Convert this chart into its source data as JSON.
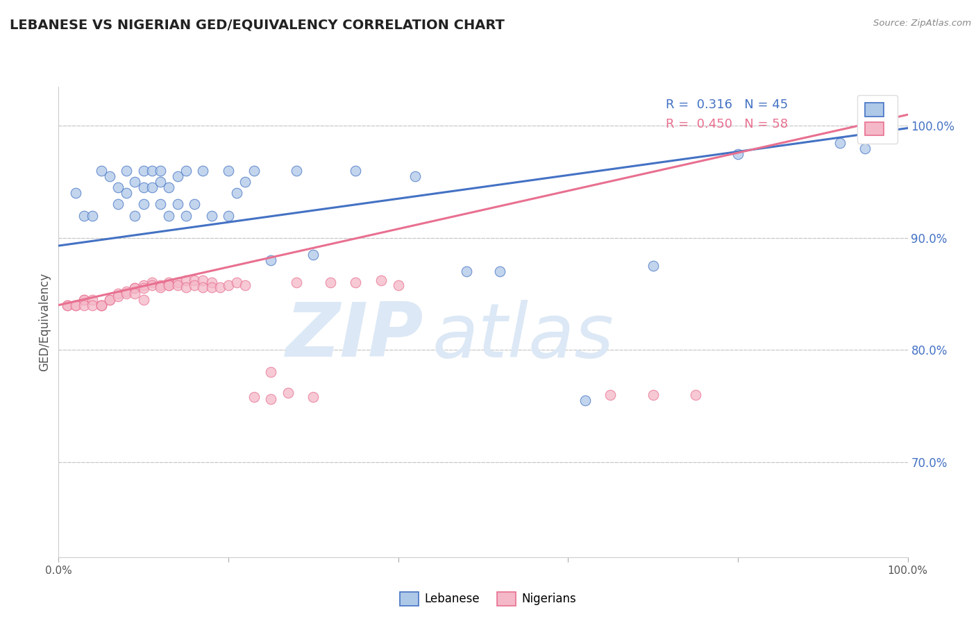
{
  "title": "LEBANESE VS NIGERIAN GED/EQUIVALENCY CORRELATION CHART",
  "source": "Source: ZipAtlas.com",
  "ylabel": "GED/Equivalency",
  "xlim": [
    0.0,
    1.0
  ],
  "ylim": [
    0.615,
    1.035
  ],
  "ytick_right": [
    0.7,
    0.8,
    0.9,
    1.0
  ],
  "ytick_right_labels": [
    "70.0%",
    "80.0%",
    "90.0%",
    "100.0%"
  ],
  "background_color": "#ffffff",
  "grid_color": "#c8c8c8",
  "title_color": "#222222",
  "axis_label_color": "#555555",
  "right_tick_color": "#4472c4",
  "watermark_color": "#dce8f5",
  "leb_color": "#4472c4",
  "nig_color": "#e87090",
  "leb_scatter_facecolor": "#aec8e8",
  "nig_scatter_facecolor": "#f4b8c8",
  "leb_R": 0.316,
  "leb_N": 45,
  "nig_R": 0.45,
  "nig_N": 58,
  "leb_line": {
    "x0": 0.0,
    "y0": 0.893,
    "x1": 1.0,
    "y1": 0.998
  },
  "nig_line": {
    "x0": 0.0,
    "y0": 0.84,
    "x1": 1.0,
    "y1": 1.01
  },
  "lebanese_scatter_x": [
    0.02,
    0.03,
    0.04,
    0.05,
    0.06,
    0.07,
    0.07,
    0.08,
    0.08,
    0.09,
    0.09,
    0.1,
    0.1,
    0.1,
    0.11,
    0.11,
    0.12,
    0.12,
    0.12,
    0.13,
    0.13,
    0.14,
    0.14,
    0.15,
    0.15,
    0.16,
    0.17,
    0.18,
    0.2,
    0.2,
    0.21,
    0.22,
    0.23,
    0.25,
    0.28,
    0.3,
    0.35,
    0.42,
    0.48,
    0.52,
    0.62,
    0.7,
    0.8,
    0.92,
    0.95
  ],
  "lebanese_scatter_y": [
    0.94,
    0.92,
    0.92,
    0.96,
    0.955,
    0.945,
    0.93,
    0.96,
    0.94,
    0.95,
    0.92,
    0.96,
    0.945,
    0.93,
    0.96,
    0.945,
    0.96,
    0.95,
    0.93,
    0.945,
    0.92,
    0.955,
    0.93,
    0.96,
    0.92,
    0.93,
    0.96,
    0.92,
    0.96,
    0.92,
    0.94,
    0.95,
    0.96,
    0.88,
    0.96,
    0.885,
    0.96,
    0.955,
    0.87,
    0.87,
    0.755,
    0.875,
    0.975,
    0.985,
    0.98
  ],
  "nigerian_scatter_x": [
    0.01,
    0.01,
    0.02,
    0.02,
    0.03,
    0.03,
    0.03,
    0.04,
    0.04,
    0.05,
    0.05,
    0.05,
    0.06,
    0.06,
    0.07,
    0.07,
    0.08,
    0.08,
    0.09,
    0.09,
    0.09,
    0.1,
    0.1,
    0.1,
    0.11,
    0.11,
    0.12,
    0.12,
    0.13,
    0.13,
    0.13,
    0.14,
    0.14,
    0.15,
    0.15,
    0.16,
    0.16,
    0.17,
    0.17,
    0.18,
    0.18,
    0.19,
    0.2,
    0.21,
    0.22,
    0.23,
    0.25,
    0.25,
    0.27,
    0.28,
    0.3,
    0.32,
    0.35,
    0.38,
    0.4,
    0.65,
    0.7,
    0.75
  ],
  "nigerian_scatter_y": [
    0.84,
    0.84,
    0.84,
    0.84,
    0.845,
    0.845,
    0.84,
    0.845,
    0.84,
    0.84,
    0.84,
    0.84,
    0.845,
    0.845,
    0.85,
    0.848,
    0.852,
    0.85,
    0.855,
    0.855,
    0.85,
    0.858,
    0.855,
    0.845,
    0.86,
    0.858,
    0.858,
    0.856,
    0.86,
    0.858,
    0.858,
    0.86,
    0.858,
    0.862,
    0.856,
    0.862,
    0.858,
    0.862,
    0.856,
    0.86,
    0.856,
    0.856,
    0.858,
    0.86,
    0.858,
    0.758,
    0.78,
    0.756,
    0.762,
    0.86,
    0.758,
    0.86,
    0.86,
    0.862,
    0.858,
    0.76,
    0.76,
    0.76
  ]
}
